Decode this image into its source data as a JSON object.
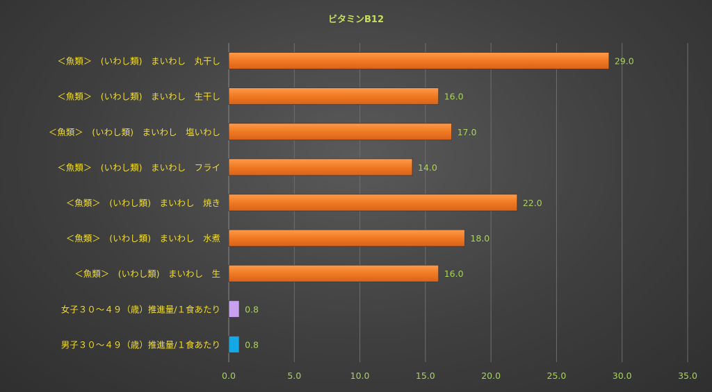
{
  "chart_data": {
    "type": "bar",
    "orientation": "horizontal",
    "title": "ビタミンB12",
    "categories": [
      "＜魚類＞　(いわし類)　まいわし　丸干し",
      "＜魚類＞　(いわし類)　まいわし　生干し",
      "＜魚類＞　(いわし類)　まいわし　塩いわし",
      "＜魚類＞　(いわし類)　まいわし　フライ",
      "＜魚類＞　(いわし類)　まいわし　焼き",
      "＜魚類＞　(いわし類)　まいわし　水煮",
      "＜魚類＞　(いわし類)　まいわし　生",
      "女子３０～４９（歳）推進量/１食あたり",
      "男子３０～４９（歳）推進量/１食あたり"
    ],
    "values": [
      29.0,
      16.0,
      17.0,
      14.0,
      22.0,
      18.0,
      16.0,
      0.8,
      0.8
    ],
    "value_labels": [
      "29.0",
      "16.0",
      "17.0",
      "14.0",
      "22.0",
      "18.0",
      "16.0",
      "0.8",
      "0.8"
    ],
    "bar_colors": [
      "#f07a22",
      "#f07a22",
      "#f07a22",
      "#f07a22",
      "#f07a22",
      "#f07a22",
      "#f07a22",
      "#c9a0f0",
      "#14a9e6"
    ],
    "xlim": [
      0,
      35
    ],
    "xticks": [
      0,
      5,
      10,
      15,
      20,
      25,
      30,
      35
    ],
    "xtick_labels": [
      "0.0",
      "5.0",
      "10.0",
      "15.0",
      "20.0",
      "25.0",
      "30.0",
      "35.0"
    ],
    "xlabel": "",
    "ylabel": "",
    "grid": "vertical",
    "legend": "none"
  }
}
